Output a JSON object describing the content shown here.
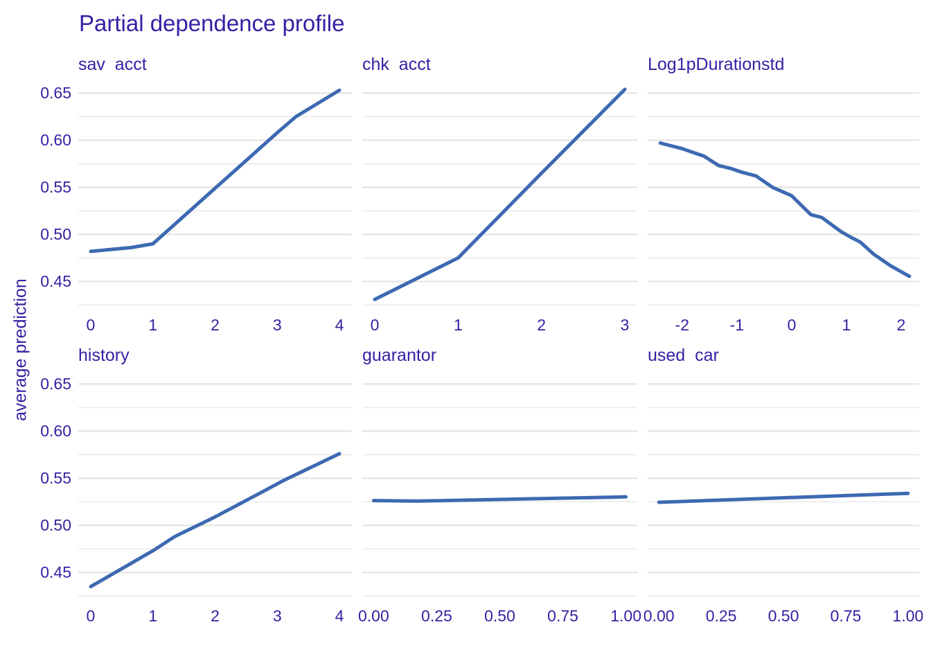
{
  "title": "Partial dependence profile",
  "colors": {
    "text": "#371ea3",
    "line": "#3d69b2",
    "grid_major": "#e1e1e1",
    "grid_minor": "#eaeaea",
    "background": "#ffffff"
  },
  "chart_data": {
    "type": "line",
    "title": "Partial dependence profile",
    "ylabel": "average prediction",
    "legend": "none",
    "grid": "horizontal major and minor gridlines only, no vertical grid, no axis lines, no tick marks",
    "ylim": [
      0.415,
      0.665
    ],
    "y_ticks_major": [
      0.45,
      0.5,
      0.55,
      0.6,
      0.65
    ],
    "y_ticks_minor": [
      0.425,
      0.475,
      0.525,
      0.575,
      0.625
    ],
    "y_tick_labels": [
      "0.65",
      "0.60",
      "0.55",
      "0.50",
      "0.45"
    ],
    "facets": [
      {
        "label": "sav  acct",
        "x_domain": [
          -0.2,
          4.2
        ],
        "x_ticks": [
          0,
          1,
          2,
          3,
          4
        ],
        "x_tick_labels": [
          "0",
          "1",
          "2",
          "3",
          "4"
        ],
        "x": [
          0,
          0.65,
          1,
          2,
          3,
          3.3,
          4
        ],
        "y": [
          0.482,
          0.486,
          0.49,
          0.549,
          0.608,
          0.625,
          0.653
        ]
      },
      {
        "label": "chk  acct",
        "x_domain": [
          -0.15,
          3.15
        ],
        "x_ticks": [
          0,
          1,
          2,
          3
        ],
        "x_tick_labels": [
          "0",
          "1",
          "2",
          "3"
        ],
        "x": [
          0,
          1,
          2,
          3
        ],
        "y": [
          0.431,
          0.475,
          0.565,
          0.654
        ]
      },
      {
        "label": "Log1pDurationstd",
        "x_domain": [
          -2.63,
          2.33
        ],
        "x_ticks": [
          -2,
          -1,
          0,
          1,
          2
        ],
        "x_tick_labels": [
          "-2",
          "-1",
          "0",
          "1",
          "2"
        ],
        "x": [
          -2.4,
          -2.0,
          -1.6,
          -1.33,
          -1.11,
          -0.91,
          -0.65,
          -0.35,
          0,
          0.35,
          0.55,
          0.9,
          1.08,
          1.25,
          1.5,
          1.8,
          2.15
        ],
        "y": [
          0.597,
          0.591,
          0.583,
          0.573,
          0.57,
          0.566,
          0.562,
          0.55,
          0.541,
          0.521,
          0.518,
          0.503,
          0.497,
          0.492,
          0.479,
          0.467,
          0.4555
        ]
      },
      {
        "label": "history",
        "x_domain": [
          -0.2,
          4.2
        ],
        "x_ticks": [
          0,
          1,
          2,
          3,
          4
        ],
        "x_tick_labels": [
          "0",
          "1",
          "2",
          "3",
          "4"
        ],
        "x": [
          0,
          1,
          1.35,
          2,
          3,
          3.08,
          4
        ],
        "y": [
          0.435,
          0.473,
          0.488,
          0.509,
          0.544,
          0.547,
          0.576
        ]
      },
      {
        "label": "guarantor",
        "x_domain": [
          -0.045,
          1.045
        ],
        "x_ticks": [
          0,
          0.25,
          0.5,
          0.75,
          1
        ],
        "x_tick_labels": [
          "0.00",
          "0.25",
          "0.50",
          "0.75",
          "1.00"
        ],
        "x": [
          0,
          0.17,
          1
        ],
        "y": [
          0.5263,
          0.5257,
          0.5302
        ]
      },
      {
        "label": "used  car",
        "x_domain": [
          -0.045,
          1.045
        ],
        "x_ticks": [
          0,
          0.25,
          0.5,
          0.75,
          1
        ],
        "x_tick_labels": [
          "0.00",
          "0.25",
          "0.50",
          "0.75",
          "1.00"
        ],
        "x": [
          0,
          1
        ],
        "y": [
          0.5245,
          0.534
        ]
      }
    ]
  }
}
